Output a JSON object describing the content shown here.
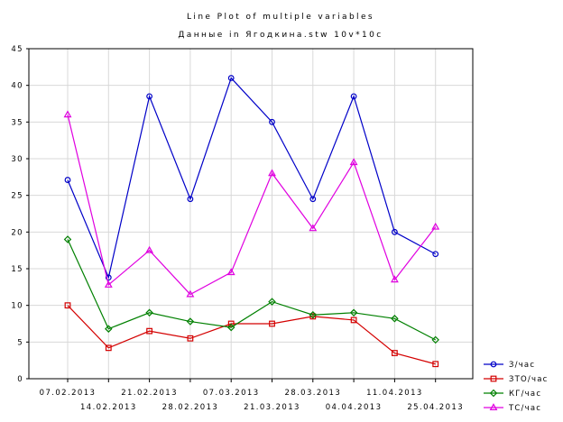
{
  "chart_data": {
    "type": "line",
    "title": "Line Plot of multiple variables",
    "subtitle": "Данные in Ягодкина.stw 10v*10c",
    "xlabel": "",
    "ylabel": "",
    "ylim": [
      0,
      45
    ],
    "yticks": [
      "0",
      "5",
      "10",
      "15",
      "20",
      "25",
      "30",
      "35",
      "40",
      "45"
    ],
    "categories": [
      "07.02.2013",
      "14.02.2013",
      "21.02.2013",
      "28.02.2013",
      "07.03.2013",
      "21.03.2013",
      "28.03.2013",
      "04.04.2013",
      "11.04.2013",
      "25.04.2013"
    ],
    "grid": true,
    "legend_position": "bottom-right",
    "series": [
      {
        "name": "З/час",
        "color": "#0000c8",
        "marker": "circle",
        "values": [
          27.1,
          13.8,
          38.5,
          24.5,
          41.0,
          35.0,
          24.5,
          38.5,
          20.0,
          17.0
        ]
      },
      {
        "name": "ЗТО/час",
        "color": "#d40000",
        "marker": "square",
        "values": [
          10.0,
          4.2,
          6.5,
          5.5,
          7.5,
          7.5,
          8.5,
          8.0,
          3.5,
          2.0
        ]
      },
      {
        "name": "КГ/час",
        "color": "#008000",
        "marker": "diamond",
        "values": [
          19.0,
          6.8,
          9.0,
          7.8,
          7.0,
          10.5,
          8.7,
          9.0,
          8.2,
          5.3
        ]
      },
      {
        "name": "ТС/час",
        "color": "#e000e0",
        "marker": "triangle",
        "values": [
          36.0,
          12.8,
          17.5,
          11.5,
          14.5,
          28.0,
          20.5,
          29.5,
          13.5,
          20.7
        ]
      }
    ]
  }
}
